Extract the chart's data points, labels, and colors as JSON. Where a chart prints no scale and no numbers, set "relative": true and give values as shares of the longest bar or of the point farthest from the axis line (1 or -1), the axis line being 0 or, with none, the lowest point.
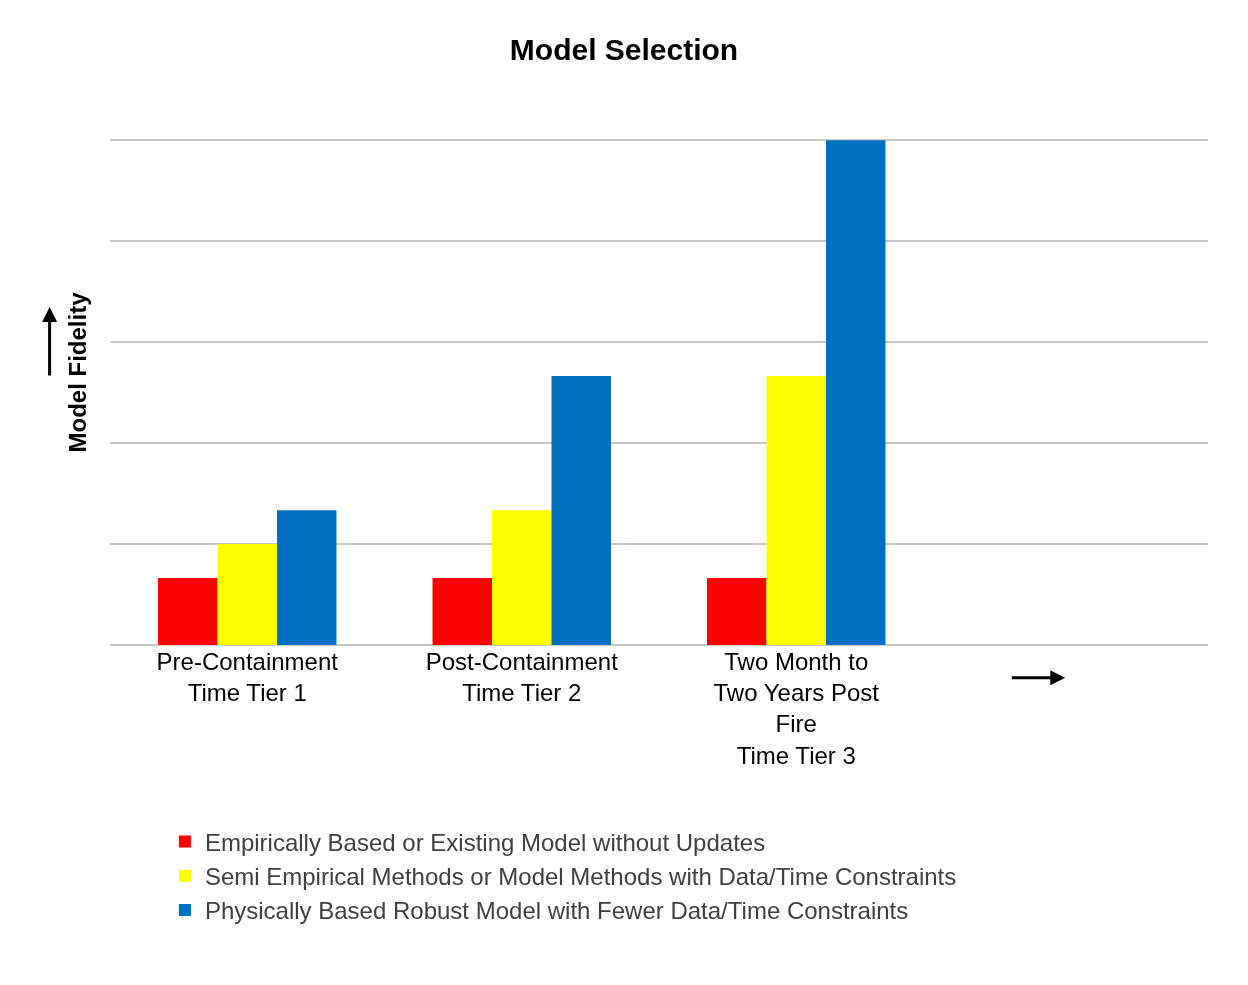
{
  "chart_data": {
    "type": "bar",
    "title": "Model Selection",
    "ylabel": "Model Fidelity",
    "relative": true,
    "grid": "y",
    "legend": "bottom",
    "categories": [
      "Pre-Containment\nTime Tier 1",
      "Post-Containment\nTime Tier 2",
      "Two Month to\nTwo Years Post\nFire\nTime Tier 3"
    ],
    "series": [
      {
        "name": "Empirically Based or Existing Model without Updates",
        "color": "#ff0000",
        "values": [
          0.133,
          0.133,
          0.133
        ]
      },
      {
        "name": "Semi Empirical Methods or Model Methods with Data/Time Constraints",
        "color": "#ffff00",
        "values": [
          0.2,
          0.267,
          0.533
        ]
      },
      {
        "name": "Physically Based Robust Model with Fewer Data/Time Constraints",
        "color": "#0070c0",
        "values": [
          0.267,
          0.533,
          1
        ]
      }
    ]
  }
}
